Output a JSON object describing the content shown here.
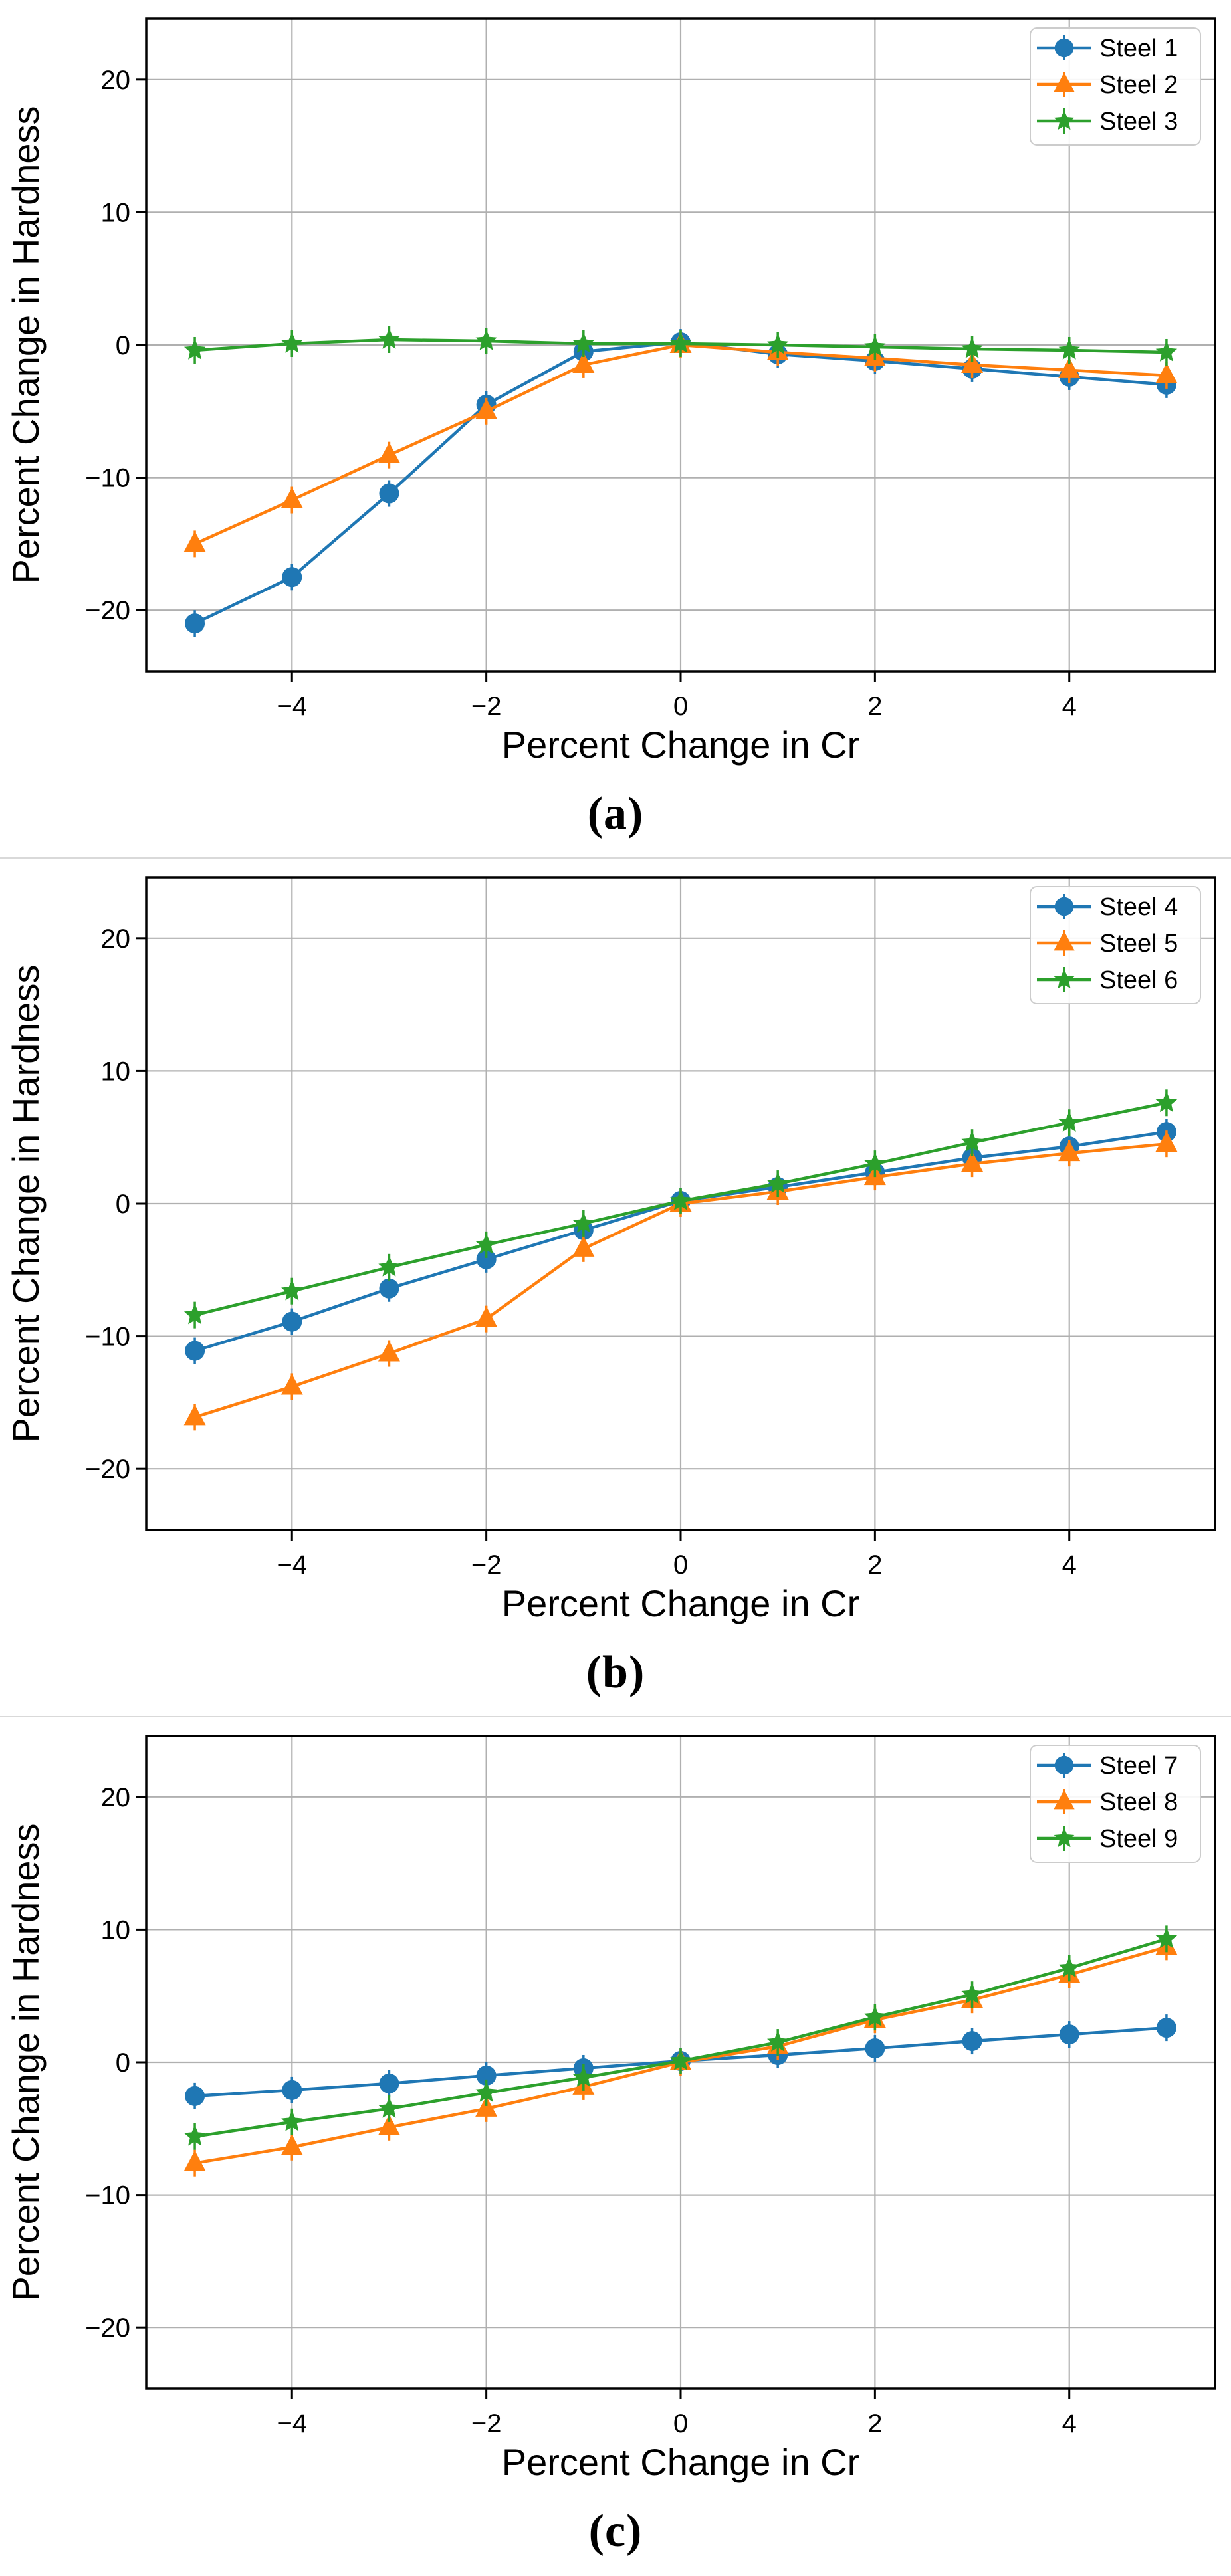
{
  "page": {
    "background": "#ffffff"
  },
  "colors": {
    "axis": "#000000",
    "grid": "#b0b0b0",
    "tick_text": "#000000",
    "legend_border": "#cccccc",
    "legend_background": "#ffffff",
    "series_blue": "#1f77b4",
    "series_orange": "#ff7f0e",
    "series_green": "#2ca02c"
  },
  "chart_data": [
    {
      "type": "line",
      "caption": "(a)",
      "xlabel": "Percent Change in Cr",
      "ylabel": "Percent Change in Hardness",
      "x": [
        -5,
        -4,
        -3,
        -2,
        -1,
        0,
        1,
        2,
        3,
        4,
        5
      ],
      "xticks": [
        -4,
        -2,
        0,
        2,
        4
      ],
      "yticks": [
        -20,
        -10,
        0,
        10,
        20
      ],
      "xlim": [
        -5.5,
        5.5
      ],
      "ylim": [
        -24.6,
        24.6
      ],
      "grid": true,
      "legend_position": "upper right",
      "series": [
        {
          "name": "Steel 1",
          "color": "#1f77b4",
          "marker": "circle",
          "values": [
            -21.0,
            -17.5,
            -11.2,
            -4.5,
            -0.5,
            0.2,
            -0.7,
            -1.2,
            -1.8,
            -2.4,
            -3.0
          ]
        },
        {
          "name": "Steel 2",
          "color": "#ff7f0e",
          "marker": "triangle",
          "values": [
            -15.0,
            -11.7,
            -8.3,
            -5.0,
            -1.5,
            0.0,
            -0.55,
            -1.0,
            -1.5,
            -1.9,
            -2.3
          ]
        },
        {
          "name": "Steel 3",
          "color": "#2ca02c",
          "marker": "star",
          "values": [
            -0.4,
            0.1,
            0.4,
            0.3,
            0.1,
            0.1,
            0.0,
            -0.15,
            -0.3,
            -0.4,
            -0.55
          ]
        }
      ]
    },
    {
      "type": "line",
      "caption": "(b)",
      "xlabel": "Percent Change in Cr",
      "ylabel": "Percent Change in Hardness",
      "x": [
        -5,
        -4,
        -3,
        -2,
        -1,
        0,
        1,
        2,
        3,
        4,
        5
      ],
      "xticks": [
        -4,
        -2,
        0,
        2,
        4
      ],
      "yticks": [
        -20,
        -10,
        0,
        10,
        20
      ],
      "xlim": [
        -5.5,
        5.5
      ],
      "ylim": [
        -24.6,
        24.6
      ],
      "grid": true,
      "legend_position": "upper right",
      "series": [
        {
          "name": "Steel 4",
          "color": "#1f77b4",
          "marker": "circle",
          "values": [
            -11.1,
            -8.9,
            -6.4,
            -4.2,
            -2.0,
            0.2,
            1.25,
            2.35,
            3.45,
            4.3,
            5.4
          ]
        },
        {
          "name": "Steel 5",
          "color": "#ff7f0e",
          "marker": "triangle",
          "values": [
            -16.1,
            -13.8,
            -11.3,
            -8.7,
            -3.4,
            0.0,
            0.9,
            2.0,
            3.0,
            3.8,
            4.5
          ]
        },
        {
          "name": "Steel 6",
          "color": "#2ca02c",
          "marker": "star",
          "values": [
            -8.4,
            -6.6,
            -4.8,
            -3.1,
            -1.5,
            0.2,
            1.5,
            3.0,
            4.6,
            6.1,
            7.6
          ]
        }
      ]
    },
    {
      "type": "line",
      "caption": "(c)",
      "xlabel": "Percent Change in Cr",
      "ylabel": "Percent Change in Hardness",
      "x": [
        -5,
        -4,
        -3,
        -2,
        -1,
        0,
        1,
        2,
        3,
        4,
        5
      ],
      "xticks": [
        -4,
        -2,
        0,
        2,
        4
      ],
      "yticks": [
        -20,
        -10,
        0,
        10,
        20
      ],
      "xlim": [
        -5.5,
        5.5
      ],
      "ylim": [
        -24.6,
        24.6
      ],
      "grid": true,
      "legend_position": "upper right",
      "series": [
        {
          "name": "Steel 7",
          "color": "#1f77b4",
          "marker": "circle",
          "values": [
            -2.55,
            -2.1,
            -1.6,
            -1.0,
            -0.45,
            0.1,
            0.55,
            1.05,
            1.6,
            2.1,
            2.6
          ]
        },
        {
          "name": "Steel 8",
          "color": "#ff7f0e",
          "marker": "triangle",
          "values": [
            -7.6,
            -6.4,
            -4.9,
            -3.5,
            -1.85,
            0.0,
            1.2,
            3.2,
            4.7,
            6.6,
            8.7
          ]
        },
        {
          "name": "Steel 9",
          "color": "#2ca02c",
          "marker": "star",
          "values": [
            -5.6,
            -4.5,
            -3.5,
            -2.3,
            -1.15,
            0.1,
            1.5,
            3.4,
            5.1,
            7.1,
            9.3
          ]
        }
      ]
    }
  ]
}
